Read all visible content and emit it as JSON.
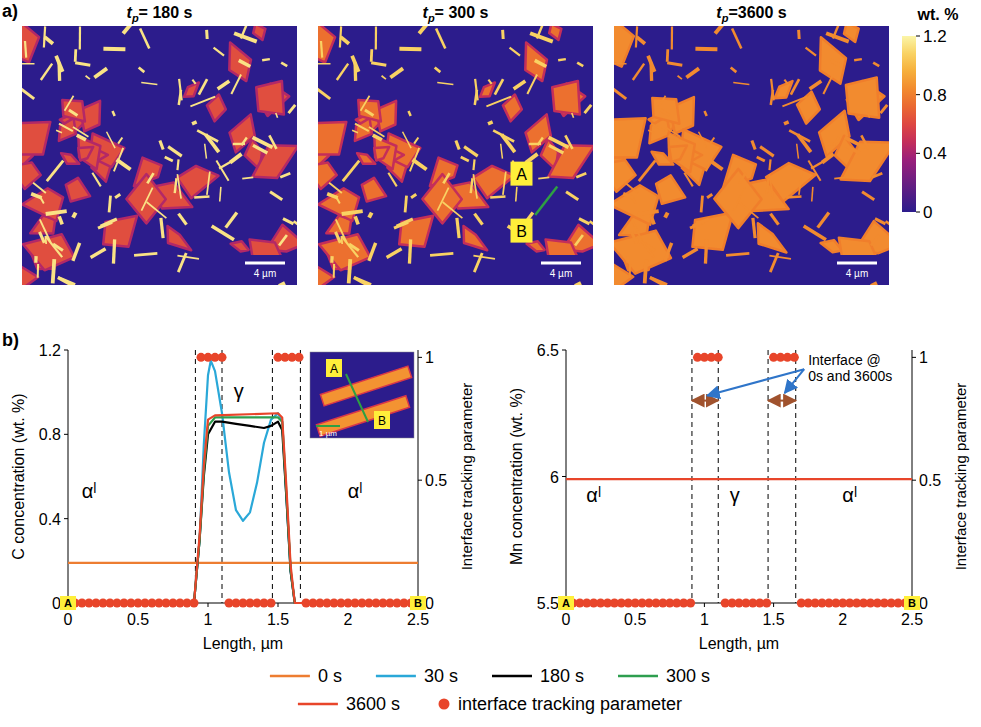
{
  "chart_data": [
    {
      "type": "image",
      "panel": "a)",
      "images": [
        {
          "title": {
            "main": "t",
            "sub": "p",
            "rest": "= 180 s"
          },
          "scale_bar": "4 µm"
        },
        {
          "title": {
            "main": "t",
            "sub": "p",
            "rest": "= 300 s"
          },
          "scale_bar": "4 µm",
          "labels": [
            "A",
            "B"
          ]
        },
        {
          "title": {
            "main": "t",
            "sub": "p",
            "rest": "=3600 s"
          },
          "scale_bar": "4 µm"
        }
      ],
      "colorbar": {
        "label": "wt. %",
        "lim": [
          0,
          1.2
        ],
        "ticks": [
          0,
          0.4,
          0.8,
          1.2
        ]
      }
    },
    {
      "type": "line",
      "panel": "b)",
      "xlabel": "Length, µm",
      "ylabel": "C concentration (wt. %)",
      "y2label": "Interface tracking parameter",
      "xlim": [
        0,
        2.5
      ],
      "xticks": [
        0,
        0.5,
        1,
        1.5,
        2,
        2.5
      ],
      "ylim": [
        0,
        1.2
      ],
      "yticks": [
        0,
        0.4,
        0.8,
        1.2
      ],
      "y2lim": [
        0,
        1.03
      ],
      "y2ticks": [
        0,
        0.5,
        1
      ],
      "grid": false,
      "legend": "bottom",
      "interfaces": [
        0.91,
        1.1,
        1.46,
        1.66
      ],
      "endpoints": [
        "A",
        "B"
      ],
      "annotations": [
        {
          "text": "αˡ",
          "x": 0.15,
          "y": 0.5
        },
        {
          "text": "γ",
          "x": 1.22,
          "y": 0.97
        },
        {
          "text": "αˡ",
          "x": 2.05,
          "y": 0.5
        }
      ],
      "inset": {
        "labels": [
          "A",
          "B"
        ],
        "scale_bar": "1 µm"
      },
      "series": [
        {
          "name": "0 s",
          "color": "#ed7d31",
          "type": "line",
          "x": [
            0,
            2.5
          ],
          "values": [
            0.19,
            0.19
          ]
        },
        {
          "name": "30 s",
          "color": "#2aa8d8",
          "type": "line",
          "x": [
            0,
            0.9,
            0.94,
            0.97,
            1.0,
            1.02,
            1.05,
            1.1,
            1.15,
            1.2,
            1.25,
            1.3,
            1.35,
            1.4,
            1.45,
            1.5,
            1.53,
            1.56,
            1.59,
            1.62,
            2.5
          ],
          "values": [
            0,
            0,
            0.3,
            0.75,
            1.08,
            1.15,
            1.1,
            0.9,
            0.62,
            0.44,
            0.39,
            0.43,
            0.57,
            0.76,
            0.87,
            0.9,
            0.86,
            0.5,
            0.15,
            0,
            0
          ]
        },
        {
          "name": "180 s",
          "color": "#000000",
          "type": "line",
          "x": [
            0,
            0.9,
            0.94,
            0.97,
            1.0,
            1.05,
            1.1,
            1.2,
            1.3,
            1.4,
            1.45,
            1.5,
            1.53,
            1.56,
            1.59,
            1.62,
            2.5
          ],
          "values": [
            0,
            0,
            0.3,
            0.6,
            0.8,
            0.86,
            0.86,
            0.85,
            0.84,
            0.83,
            0.84,
            0.86,
            0.82,
            0.5,
            0.15,
            0,
            0
          ]
        },
        {
          "name": "300 s",
          "color": "#2e9e4f",
          "type": "line",
          "x": [
            0,
            0.9,
            0.94,
            0.97,
            1.0,
            1.05,
            1.5,
            1.53,
            1.56,
            1.59,
            1.62,
            2.5
          ],
          "values": [
            0,
            0,
            0.3,
            0.62,
            0.84,
            0.88,
            0.88,
            0.86,
            0.52,
            0.16,
            0,
            0
          ]
        },
        {
          "name": "3600 s",
          "color": "#e8452a",
          "type": "line",
          "x": [
            0,
            0.9,
            0.94,
            0.97,
            1.0,
            1.05,
            1.5,
            1.53,
            1.56,
            1.59,
            1.62,
            2.5
          ],
          "values": [
            0,
            0,
            0.32,
            0.65,
            0.87,
            0.89,
            0.9,
            0.88,
            0.55,
            0.18,
            0,
            0
          ]
        },
        {
          "name": "interface tracking parameter",
          "color": "#e8452a",
          "type": "scatter",
          "marker": "circle",
          "axis": "y2",
          "x": [
            0,
            0.05,
            0.1,
            0.15,
            0.2,
            0.25,
            0.3,
            0.35,
            0.4,
            0.45,
            0.5,
            0.55,
            0.6,
            0.65,
            0.7,
            0.75,
            0.8,
            0.85,
            0.9,
            0.95,
            1,
            1.05,
            1.1,
            1.15,
            1.2,
            1.25,
            1.3,
            1.35,
            1.4,
            1.45,
            1.5,
            1.55,
            1.6,
            1.65,
            1.7,
            1.75,
            1.8,
            1.85,
            1.9,
            1.95,
            2,
            2.05,
            2.1,
            2.15,
            2.2,
            2.25,
            2.3,
            2.35,
            2.4,
            2.45,
            2.5
          ],
          "values": [
            0,
            0,
            0,
            0,
            0,
            0,
            0,
            0,
            0,
            0,
            0,
            0,
            0,
            0,
            0,
            0,
            0,
            0,
            0,
            1,
            1,
            1,
            1,
            0,
            0,
            0,
            0,
            0,
            0,
            0,
            1,
            1,
            1,
            1,
            0,
            0,
            0,
            0,
            0,
            0,
            0,
            0,
            0,
            0,
            0,
            0,
            0,
            0,
            0,
            0,
            0
          ]
        }
      ]
    },
    {
      "type": "line",
      "xlabel": "Length, µm",
      "ylabel": "Mn concentration (wt. %)",
      "y2label": "Interface tracking parameter",
      "xlim": [
        0,
        2.5
      ],
      "xticks": [
        0,
        0.5,
        1,
        1.5,
        2,
        2.5
      ],
      "ylim": [
        5.5,
        6.5
      ],
      "yticks": [
        5.5,
        6,
        6.5
      ],
      "y2lim": [
        0,
        1.03
      ],
      "y2ticks": [
        0,
        0.5,
        1
      ],
      "grid": false,
      "interfaces": [
        0.91,
        1.1,
        1.46,
        1.66
      ],
      "interface_arrows_y": 6.3,
      "endpoints": [
        "A",
        "B"
      ],
      "annotations": [
        {
          "text": "αˡ",
          "x": 0.2,
          "y": 5.9
        },
        {
          "text": "γ",
          "x": 1.22,
          "y": 5.9
        },
        {
          "text": "αˡ",
          "x": 2.05,
          "y": 5.9
        },
        {
          "text": [
            "Interface @",
            "0s and 3600s"
          ],
          "x": 1.75,
          "y": 6.44,
          "arrows_to": [
            [
              1.02,
              6.32
            ],
            [
              1.58,
              6.33
            ]
          ]
        }
      ],
      "series": [
        {
          "name": "3600 s",
          "color": "#e8452a",
          "type": "line",
          "x": [
            0,
            2.5
          ],
          "values": [
            5.99,
            5.99
          ]
        },
        {
          "name": "interface tracking parameter",
          "color": "#e8452a",
          "type": "scatter",
          "marker": "circle",
          "axis": "y2",
          "x": [
            0,
            0.05,
            0.1,
            0.15,
            0.2,
            0.25,
            0.3,
            0.35,
            0.4,
            0.45,
            0.5,
            0.55,
            0.6,
            0.65,
            0.7,
            0.75,
            0.8,
            0.85,
            0.9,
            0.95,
            1,
            1.05,
            1.1,
            1.15,
            1.2,
            1.25,
            1.3,
            1.35,
            1.4,
            1.45,
            1.5,
            1.55,
            1.6,
            1.65,
            1.7,
            1.75,
            1.8,
            1.85,
            1.9,
            1.95,
            2,
            2.05,
            2.1,
            2.15,
            2.2,
            2.25,
            2.3,
            2.35,
            2.4,
            2.45,
            2.5
          ],
          "values": [
            0,
            0,
            0,
            0,
            0,
            0,
            0,
            0,
            0,
            0,
            0,
            0,
            0,
            0,
            0,
            0,
            0,
            0,
            0,
            1,
            1,
            1,
            1,
            0,
            0,
            0,
            0,
            0,
            0,
            0,
            1,
            1,
            1,
            1,
            0,
            0,
            0,
            0,
            0,
            0,
            0,
            0,
            0,
            0,
            0,
            0,
            0,
            0,
            0,
            0,
            0
          ]
        }
      ]
    }
  ]
}
